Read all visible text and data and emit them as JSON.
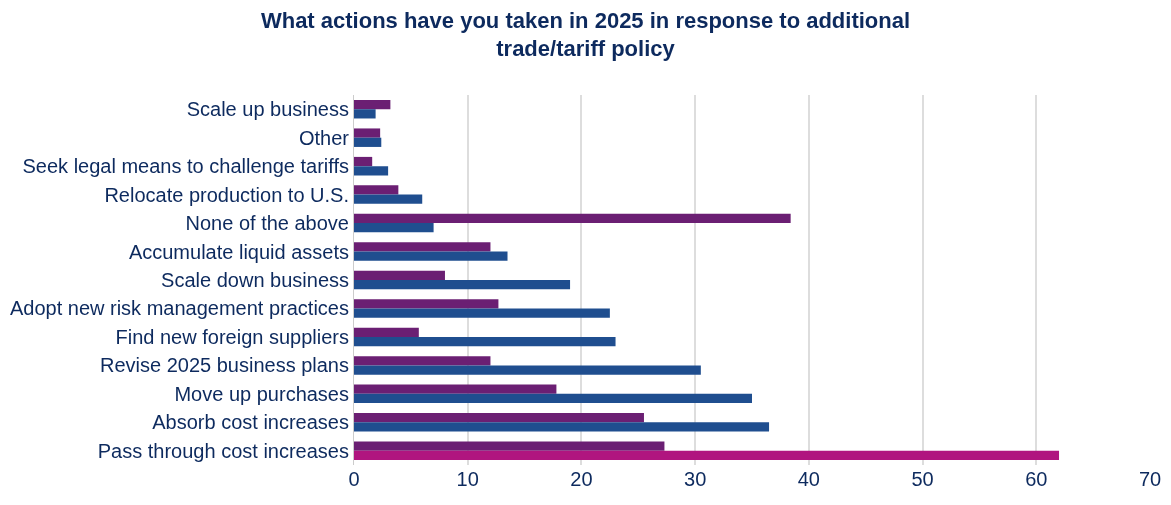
{
  "chart_data": {
    "type": "bar",
    "orientation": "horizontal",
    "title": "What actions have you taken in 2025 in response to additional trade/tariff policy",
    "categories": [
      "Scale up business",
      "Other",
      "Seek legal means to challenge tariffs",
      "Relocate production to U.S.",
      "None of the above",
      "Accumulate liquid assets",
      "Scale down business",
      "Adopt new risk management practices",
      "Find new foreign suppliers",
      "Revise 2025 business plans",
      "Move up purchases",
      "Absorb cost increases",
      "Pass through cost increases"
    ],
    "series": [
      {
        "color": "#6b1f73",
        "values": [
          3.2,
          2.3,
          1.6,
          3.9,
          38.4,
          12.0,
          8.0,
          12.7,
          5.7,
          12.0,
          17.8,
          25.5,
          27.3
        ]
      },
      {
        "colors": [
          "#1f4e8f",
          "#1f4e8f",
          "#1f4e8f",
          "#1f4e8f",
          "#1f4e8f",
          "#1f4e8f",
          "#1f4e8f",
          "#1f4e8f",
          "#1f4e8f",
          "#1f4e8f",
          "#1f4e8f",
          "#1f4e8f",
          "#b0157f"
        ],
        "values": [
          1.9,
          2.4,
          3.0,
          6.0,
          7.0,
          13.5,
          19.0,
          22.5,
          23.0,
          30.5,
          35.0,
          36.5,
          62.0
        ]
      }
    ],
    "xlim": [
      0,
      70
    ],
    "xticks": [
      0,
      10,
      20,
      30,
      40,
      50,
      60,
      70
    ],
    "grid": "x"
  }
}
